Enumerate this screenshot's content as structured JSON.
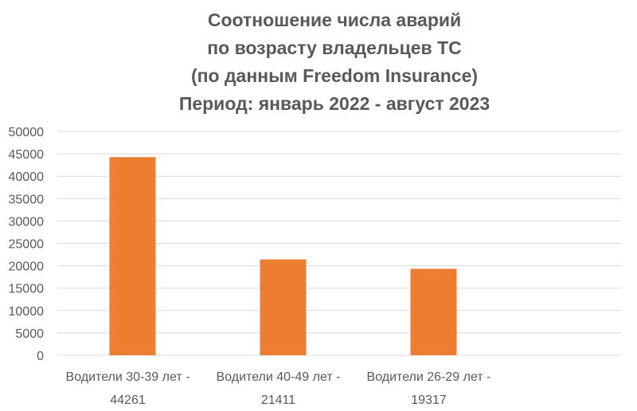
{
  "chart_data": {
    "type": "bar",
    "title_lines": [
      "Соотношение числа аварий",
      "по возрасту владельцев ТС",
      "(по данным Freedom Insurance)",
      "Период: январь 2022 - август 2023"
    ],
    "categories": [
      [
        "Водители 30-39 лет -",
        "44261"
      ],
      [
        "Водители 40-49 лет -",
        "21411"
      ],
      [
        "Водители 26-29 лет -",
        "19317"
      ]
    ],
    "values": [
      44261,
      21411,
      19317
    ],
    "ylim": [
      0,
      50000
    ],
    "yticks": [
      0,
      5000,
      10000,
      15000,
      20000,
      25000,
      30000,
      35000,
      40000,
      45000,
      50000
    ],
    "grid": true,
    "legend": "none",
    "bar_color": "#ED7D31",
    "grid_color": "#D9D9D9",
    "text_color": "#595959"
  }
}
